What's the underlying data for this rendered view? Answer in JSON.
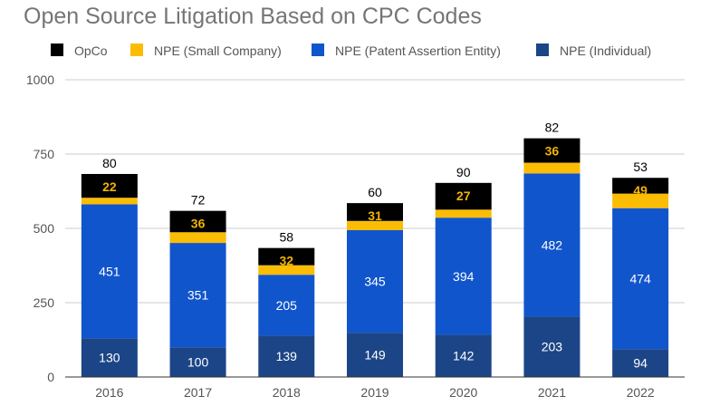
{
  "chart_data": {
    "type": "bar",
    "stacked": true,
    "title": "Open Source Litigation Based on CPC Codes",
    "categories": [
      "2016",
      "2017",
      "2018",
      "2019",
      "2020",
      "2021",
      "2022"
    ],
    "series": [
      {
        "name": "NPE (Individual)",
        "color": "#1c4587",
        "values": [
          130,
          100,
          139,
          149,
          142,
          203,
          94
        ]
      },
      {
        "name": "NPE (Patent Assertion Entity)",
        "color": "#1155cc",
        "values": [
          451,
          351,
          205,
          345,
          394,
          482,
          474
        ]
      },
      {
        "name": "NPE (Small Company)",
        "color": "#fbbc04",
        "values": [
          22,
          36,
          32,
          31,
          27,
          36,
          49
        ]
      },
      {
        "name": "OpCo",
        "color": "#000000",
        "values": [
          80,
          72,
          58,
          60,
          90,
          82,
          53
        ]
      }
    ],
    "legend_order": [
      "OpCo",
      "NPE (Small Company)",
      "NPE (Patent Assertion Entity)",
      "NPE (Individual)"
    ],
    "legend_position": "top",
    "ylim": [
      0,
      1000
    ],
    "yticks": [
      0,
      250,
      500,
      750,
      1000
    ],
    "grid": true,
    "xlabel": "",
    "ylabel": ""
  }
}
